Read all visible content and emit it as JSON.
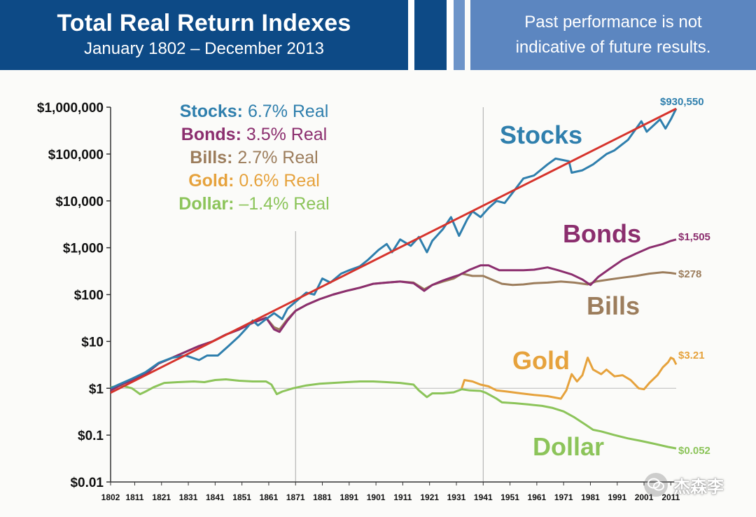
{
  "header": {
    "title": "Total Real Return Indexes",
    "subtitle": "January 1802 – December 2013",
    "disclaimer_line1": "Past performance is not",
    "disclaimer_line2": "indicative of future results."
  },
  "watermark": {
    "text": "杰森李",
    "icon": "wechat-icon"
  },
  "chart_data": {
    "type": "line",
    "yscale": "log",
    "ylim": [
      0.01,
      1000000
    ],
    "xlim": [
      1802,
      2013
    ],
    "yticks": [
      {
        "v": 1000000,
        "label": "$1,000,000"
      },
      {
        "v": 100000,
        "label": "$100,000"
      },
      {
        "v": 10000,
        "label": "$10,000"
      },
      {
        "v": 1000,
        "label": "$1,000"
      },
      {
        "v": 100,
        "label": "$100"
      },
      {
        "v": 10,
        "label": "$10"
      },
      {
        "v": 1,
        "label": "$1"
      },
      {
        "v": 0.1,
        "label": "$0.1"
      },
      {
        "v": 0.01,
        "label": "$0.01"
      }
    ],
    "xticks": [
      "1802",
      "1811",
      "1821",
      "1831",
      "1841",
      "1851",
      "1861",
      "1871",
      "1881",
      "1891",
      "1901",
      "1911",
      "1921",
      "1931",
      "1941",
      "1951",
      "1961",
      "1971",
      "1981",
      "1991",
      "2001",
      "2011"
    ],
    "vlines": [
      1871,
      1941
    ],
    "legend": [
      {
        "name": "Stocks",
        "value": "6.7% Real",
        "color": "#2f7fad"
      },
      {
        "name": "Bonds",
        "value": "3.5% Real",
        "color": "#8b2e6e"
      },
      {
        "name": "Bills",
        "value": "2.7% Real",
        "color": "#9c7d5c"
      },
      {
        "name": "Gold",
        "value": "0.6% Real",
        "color": "#e6a23c"
      },
      {
        "name": "Dollar",
        "value": "–1.4% Real",
        "color": "#8cc45a"
      }
    ],
    "trend": {
      "color": "#d6332c",
      "points": [
        [
          1802,
          0.8
        ],
        [
          2013,
          930550
        ]
      ]
    },
    "series": [
      {
        "name": "Stocks",
        "color": "#2f7fad",
        "end_label": "$930,550",
        "big_label": "Stocks",
        "points": [
          [
            1802,
            1
          ],
          [
            1805,
            1.2
          ],
          [
            1810,
            1.6
          ],
          [
            1815,
            2.2
          ],
          [
            1820,
            3.5
          ],
          [
            1825,
            4.5
          ],
          [
            1830,
            5
          ],
          [
            1835,
            4
          ],
          [
            1838,
            5
          ],
          [
            1842,
            5
          ],
          [
            1846,
            8
          ],
          [
            1850,
            13
          ],
          [
            1853,
            20
          ],
          [
            1855,
            28
          ],
          [
            1857,
            22
          ],
          [
            1860,
            30
          ],
          [
            1863,
            40
          ],
          [
            1866,
            30
          ],
          [
            1868,
            50
          ],
          [
            1871,
            70
          ],
          [
            1875,
            110
          ],
          [
            1878,
            100
          ],
          [
            1881,
            220
          ],
          [
            1884,
            180
          ],
          [
            1888,
            280
          ],
          [
            1891,
            330
          ],
          [
            1895,
            400
          ],
          [
            1898,
            550
          ],
          [
            1902,
            900
          ],
          [
            1905,
            1200
          ],
          [
            1907,
            800
          ],
          [
            1910,
            1500
          ],
          [
            1914,
            1100
          ],
          [
            1917,
            1700
          ],
          [
            1920,
            800
          ],
          [
            1922,
            1400
          ],
          [
            1926,
            2500
          ],
          [
            1929,
            4500
          ],
          [
            1932,
            1800
          ],
          [
            1935,
            4000
          ],
          [
            1937,
            6000
          ],
          [
            1940,
            4500
          ],
          [
            1943,
            7000
          ],
          [
            1946,
            10000
          ],
          [
            1949,
            9000
          ],
          [
            1952,
            15000
          ],
          [
            1956,
            30000
          ],
          [
            1960,
            35000
          ],
          [
            1965,
            60000
          ],
          [
            1968,
            80000
          ],
          [
            1973,
            70000
          ],
          [
            1974,
            40000
          ],
          [
            1978,
            45000
          ],
          [
            1982,
            60000
          ],
          [
            1987,
            100000
          ],
          [
            1990,
            120000
          ],
          [
            1995,
            200000
          ],
          [
            2000,
            500000
          ],
          [
            2002,
            300000
          ],
          [
            2007,
            550000
          ],
          [
            2009,
            350000
          ],
          [
            2011,
            550000
          ],
          [
            2013,
            930550
          ]
        ]
      },
      {
        "name": "Bonds",
        "color": "#8b2e6e",
        "end_label": "$1,505",
        "big_label": "Bonds",
        "points": [
          [
            1802,
            0.9
          ],
          [
            1806,
            1.2
          ],
          [
            1810,
            1.5
          ],
          [
            1815,
            2
          ],
          [
            1820,
            3.4
          ],
          [
            1825,
            4.5
          ],
          [
            1830,
            6
          ],
          [
            1835,
            8
          ],
          [
            1840,
            10
          ],
          [
            1845,
            14
          ],
          [
            1850,
            18
          ],
          [
            1855,
            25
          ],
          [
            1860,
            32
          ],
          [
            1863,
            18
          ],
          [
            1865,
            16
          ],
          [
            1868,
            28
          ],
          [
            1871,
            45
          ],
          [
            1875,
            60
          ],
          [
            1880,
            80
          ],
          [
            1885,
            100
          ],
          [
            1890,
            120
          ],
          [
            1895,
            140
          ],
          [
            1900,
            170
          ],
          [
            1905,
            180
          ],
          [
            1910,
            190
          ],
          [
            1915,
            175
          ],
          [
            1919,
            120
          ],
          [
            1922,
            160
          ],
          [
            1926,
            200
          ],
          [
            1930,
            240
          ],
          [
            1932,
            260
          ],
          [
            1936,
            340
          ],
          [
            1940,
            420
          ],
          [
            1943,
            420
          ],
          [
            1947,
            330
          ],
          [
            1951,
            330
          ],
          [
            1956,
            330
          ],
          [
            1960,
            340
          ],
          [
            1965,
            380
          ],
          [
            1969,
            330
          ],
          [
            1974,
            270
          ],
          [
            1978,
            210
          ],
          [
            1981,
            160
          ],
          [
            1984,
            240
          ],
          [
            1988,
            350
          ],
          [
            1993,
            550
          ],
          [
            1998,
            750
          ],
          [
            2003,
            1000
          ],
          [
            2008,
            1200
          ],
          [
            2011,
            1400
          ],
          [
            2013,
            1505
          ]
        ]
      },
      {
        "name": "Bills",
        "color": "#9c7d5c",
        "end_label": "$278",
        "big_label": "Bills",
        "points": [
          [
            1802,
            0.9
          ],
          [
            1806,
            1.2
          ],
          [
            1810,
            1.5
          ],
          [
            1815,
            2
          ],
          [
            1820,
            3.4
          ],
          [
            1825,
            4.5
          ],
          [
            1830,
            6
          ],
          [
            1835,
            8
          ],
          [
            1840,
            10
          ],
          [
            1845,
            14
          ],
          [
            1850,
            18
          ],
          [
            1855,
            25
          ],
          [
            1860,
            32
          ],
          [
            1863,
            20
          ],
          [
            1865,
            18
          ],
          [
            1868,
            30
          ],
          [
            1871,
            45
          ],
          [
            1875,
            60
          ],
          [
            1880,
            80
          ],
          [
            1885,
            100
          ],
          [
            1890,
            120
          ],
          [
            1895,
            140
          ],
          [
            1900,
            170
          ],
          [
            1905,
            180
          ],
          [
            1910,
            190
          ],
          [
            1915,
            180
          ],
          [
            1919,
            130
          ],
          [
            1922,
            160
          ],
          [
            1926,
            190
          ],
          [
            1930,
            220
          ],
          [
            1933,
            280
          ],
          [
            1937,
            250
          ],
          [
            1941,
            250
          ],
          [
            1945,
            200
          ],
          [
            1948,
            170
          ],
          [
            1952,
            160
          ],
          [
            1956,
            165
          ],
          [
            1960,
            175
          ],
          [
            1965,
            180
          ],
          [
            1970,
            190
          ],
          [
            1975,
            180
          ],
          [
            1980,
            165
          ],
          [
            1983,
            190
          ],
          [
            1988,
            210
          ],
          [
            1993,
            230
          ],
          [
            1998,
            250
          ],
          [
            2003,
            280
          ],
          [
            2008,
            300
          ],
          [
            2011,
            290
          ],
          [
            2013,
            278
          ]
        ]
      },
      {
        "name": "Gold",
        "color": "#e6a23c",
        "end_label": "$3.21",
        "big_label": "Gold",
        "points": [
          [
            1933,
            1
          ],
          [
            1934,
            1.5
          ],
          [
            1937,
            1.4
          ],
          [
            1940,
            1.2
          ],
          [
            1943,
            1.1
          ],
          [
            1946,
            0.9
          ],
          [
            1950,
            0.85
          ],
          [
            1955,
            0.78
          ],
          [
            1960,
            0.72
          ],
          [
            1965,
            0.68
          ],
          [
            1970,
            0.6
          ],
          [
            1972,
            0.9
          ],
          [
            1974,
            2
          ],
          [
            1976,
            1.4
          ],
          [
            1978,
            1.9
          ],
          [
            1980,
            4.5
          ],
          [
            1982,
            2.5
          ],
          [
            1985,
            2
          ],
          [
            1987,
            2.5
          ],
          [
            1990,
            1.8
          ],
          [
            1993,
            1.9
          ],
          [
            1996,
            1.5
          ],
          [
            1999,
            1.0
          ],
          [
            2001,
            0.95
          ],
          [
            2003,
            1.3
          ],
          [
            2006,
            1.9
          ],
          [
            2008,
            2.8
          ],
          [
            2010,
            3.6
          ],
          [
            2011,
            4.5
          ],
          [
            2012,
            4.2
          ],
          [
            2013,
            3.21
          ]
        ]
      },
      {
        "name": "Dollar",
        "color": "#8cc45a",
        "end_label": "$0.052",
        "big_label": "Dollar",
        "points": [
          [
            1802,
            1.05
          ],
          [
            1806,
            1.15
          ],
          [
            1810,
            1.0
          ],
          [
            1813,
            0.75
          ],
          [
            1815,
            0.85
          ],
          [
            1818,
            1.05
          ],
          [
            1822,
            1.3
          ],
          [
            1827,
            1.35
          ],
          [
            1833,
            1.4
          ],
          [
            1837,
            1.35
          ],
          [
            1841,
            1.5
          ],
          [
            1845,
            1.55
          ],
          [
            1850,
            1.45
          ],
          [
            1855,
            1.4
          ],
          [
            1860,
            1.4
          ],
          [
            1862,
            1.2
          ],
          [
            1864,
            0.75
          ],
          [
            1866,
            0.85
          ],
          [
            1870,
            1.0
          ],
          [
            1875,
            1.15
          ],
          [
            1880,
            1.25
          ],
          [
            1885,
            1.3
          ],
          [
            1890,
            1.35
          ],
          [
            1895,
            1.4
          ],
          [
            1900,
            1.4
          ],
          [
            1905,
            1.35
          ],
          [
            1910,
            1.3
          ],
          [
            1915,
            1.2
          ],
          [
            1917,
            0.9
          ],
          [
            1920,
            0.65
          ],
          [
            1922,
            0.78
          ],
          [
            1926,
            0.78
          ],
          [
            1930,
            0.82
          ],
          [
            1933,
            0.95
          ],
          [
            1936,
            0.9
          ],
          [
            1940,
            0.88
          ],
          [
            1942,
            0.8
          ],
          [
            1946,
            0.6
          ],
          [
            1948,
            0.5
          ],
          [
            1953,
            0.48
          ],
          [
            1958,
            0.45
          ],
          [
            1963,
            0.42
          ],
          [
            1967,
            0.38
          ],
          [
            1971,
            0.32
          ],
          [
            1975,
            0.24
          ],
          [
            1979,
            0.17
          ],
          [
            1982,
            0.13
          ],
          [
            1985,
            0.12
          ],
          [
            1990,
            0.1
          ],
          [
            1995,
            0.085
          ],
          [
            2000,
            0.075
          ],
          [
            2005,
            0.065
          ],
          [
            2010,
            0.056
          ],
          [
            2013,
            0.052
          ]
        ]
      }
    ]
  }
}
